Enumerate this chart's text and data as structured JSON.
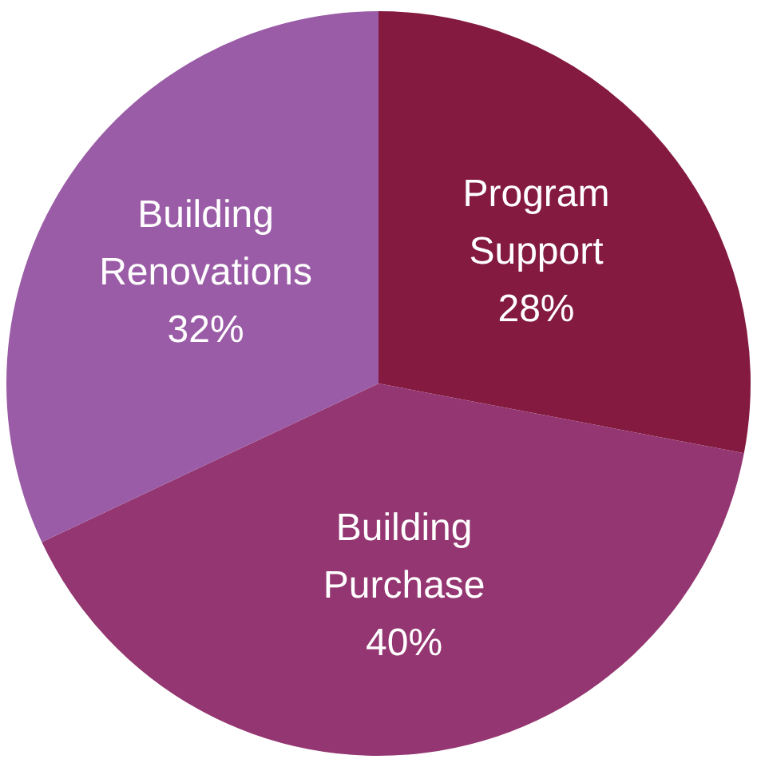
{
  "chart_data": {
    "type": "pie",
    "categories": [
      "Program Support",
      "Building Purchase",
      "Building Renovations"
    ],
    "values": [
      28,
      40,
      32
    ],
    "value_labels": [
      "28%",
      "40%",
      "32%"
    ],
    "colors": [
      "#841a40",
      "#943671",
      "#9a5ca6"
    ],
    "legend": false
  }
}
